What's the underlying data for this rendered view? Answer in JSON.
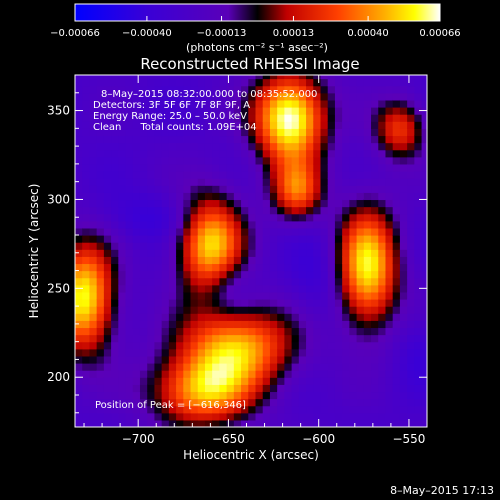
{
  "chart_data": {
    "type": "heatmap",
    "title": "Reconstructed RHESSI Image",
    "xlabel": "Heliocentric X (arcsec)",
    "ylabel": "Heliocentric Y (arcsec)",
    "xlim": [
      -735,
      -540
    ],
    "ylim": [
      172,
      370
    ],
    "x_ticks": [
      -700,
      -650,
      -600,
      -550
    ],
    "x_tick_labels": [
      "−700",
      "−650",
      "−600",
      "−550"
    ],
    "y_ticks": [
      200,
      250,
      300,
      350
    ],
    "y_tick_labels": [
      "200",
      "250",
      "300",
      "350"
    ],
    "colorbar": {
      "range": [
        -0.00066,
        0.00066
      ],
      "ticks": [
        -0.00066,
        -0.0004,
        -0.00013,
        0.00013,
        0.0004,
        0.00066
      ],
      "tick_labels": [
        "−0.00066",
        "−0.00040",
        "−0.00013",
        "0.00013",
        "0.00040",
        "0.00066"
      ],
      "unit_label": "(photons cm⁻² s⁻¹ asec⁻²)",
      "colors": [
        "#0000ff",
        "#5a00b8",
        "#ff0000",
        "#ff8c00",
        "#ffff00",
        "#ffffff"
      ]
    },
    "sources": [
      {
        "x": -616,
        "y": 346,
        "peak": 0.00066,
        "sx": 14,
        "sy": 18
      },
      {
        "x": -660,
        "y": 275,
        "peak": 0.0005,
        "sx": 13,
        "sy": 20
      },
      {
        "x": -573,
        "y": 262,
        "peak": 0.00052,
        "sx": 12,
        "sy": 24
      },
      {
        "x": -730,
        "y": 245,
        "peak": 0.00055,
        "sx": 12,
        "sy": 22
      },
      {
        "x": -645,
        "y": 218,
        "peak": 0.00042,
        "sx": 22,
        "sy": 16
      },
      {
        "x": -665,
        "y": 192,
        "peak": 0.00038,
        "sx": 20,
        "sy": 14
      },
      {
        "x": -612,
        "y": 305,
        "peak": 0.00025,
        "sx": 10,
        "sy": 12
      },
      {
        "x": -555,
        "y": 340,
        "peak": 0.0002,
        "sx": 10,
        "sy": 12
      }
    ],
    "annotations": [
      "8–May–2015 08:32:00.000 to 08:35:52.000",
      "Detectors: 3F 5F 6F 7F 8F 9F, A",
      "Energy Range: 25.0 – 50.0 keV",
      "Clean      Total counts: 1.09E+04"
    ],
    "peak_label": "Position of Peak = [−616,346]",
    "footer_date": "8–May–2015 17:13"
  }
}
